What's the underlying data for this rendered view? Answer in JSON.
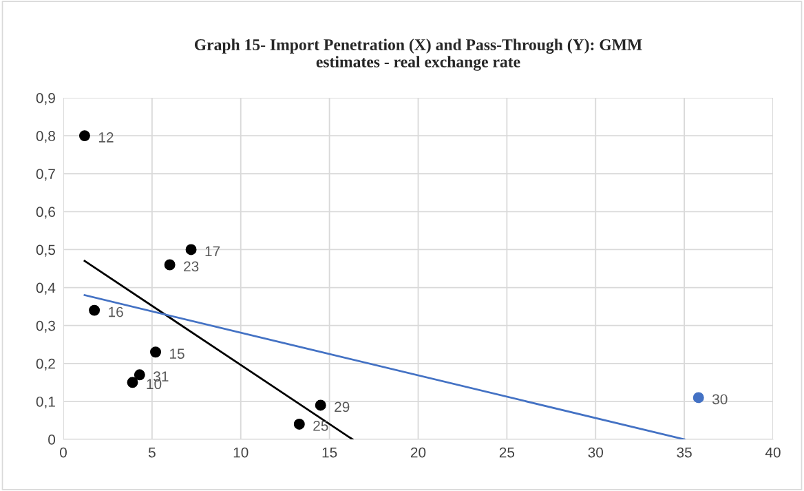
{
  "chart_data": {
    "type": "scatter",
    "title": "Graph 15- Import Penetration (X) and Pass-Through (Y): GMM\nestimates - real exchange rate",
    "xlim": [
      0,
      40
    ],
    "xticks": [
      0,
      5,
      10,
      15,
      20,
      25,
      30,
      35,
      40
    ],
    "ylim": [
      0,
      0.9
    ],
    "yticks": [
      {
        "value": 0,
        "label": "0"
      },
      {
        "value": 0.1,
        "label": "0,1"
      },
      {
        "value": 0.2,
        "label": "0,2"
      },
      {
        "value": 0.3,
        "label": "0,3"
      },
      {
        "value": 0.4,
        "label": "0,4"
      },
      {
        "value": 0.5,
        "label": "0,5"
      },
      {
        "value": 0.6,
        "label": "0,6"
      },
      {
        "value": 0.7,
        "label": "0,7"
      },
      {
        "value": 0.8,
        "label": "0,8"
      },
      {
        "value": 0.9,
        "label": "0,9"
      }
    ],
    "grid": true,
    "series": [
      {
        "marker": "circle",
        "color": "#000000",
        "x": [
          1.2,
          1.75,
          7.2,
          6.0,
          5.2,
          4.3,
          3.9,
          14.5,
          13.3
        ],
        "values": [
          0.8,
          0.34,
          0.5,
          0.46,
          0.23,
          0.17,
          0.15,
          0.09,
          0.04
        ]
      },
      {
        "marker": "circle",
        "color": "#4472c4",
        "x": [
          35.8
        ],
        "values": [
          0.11
        ]
      },
      {
        "type": "line",
        "color": "#000000",
        "x": [
          1.2,
          16.3
        ],
        "values": [
          0.47,
          0
        ]
      },
      {
        "type": "line",
        "color": "#4472c4",
        "x": [
          1.2,
          35
        ],
        "values": [
          0.38,
          0
        ]
      }
    ],
    "annotations": [
      {
        "text": "12",
        "x": 1.2,
        "y": 0.8
      },
      {
        "text": "16",
        "x": 1.75,
        "y": 0.34
      },
      {
        "text": "17",
        "x": 7.2,
        "y": 0.5
      },
      {
        "text": "23",
        "x": 6.0,
        "y": 0.46
      },
      {
        "text": "15",
        "x": 5.2,
        "y": 0.23
      },
      {
        "text": "31",
        "x": 4.3,
        "y": 0.17
      },
      {
        "text": "10",
        "x": 3.9,
        "y": 0.15
      },
      {
        "text": "29",
        "x": 14.5,
        "y": 0.09
      },
      {
        "text": "25",
        "x": 13.3,
        "y": 0.04
      },
      {
        "text": "30",
        "x": 35.8,
        "y": 0.11
      }
    ]
  }
}
